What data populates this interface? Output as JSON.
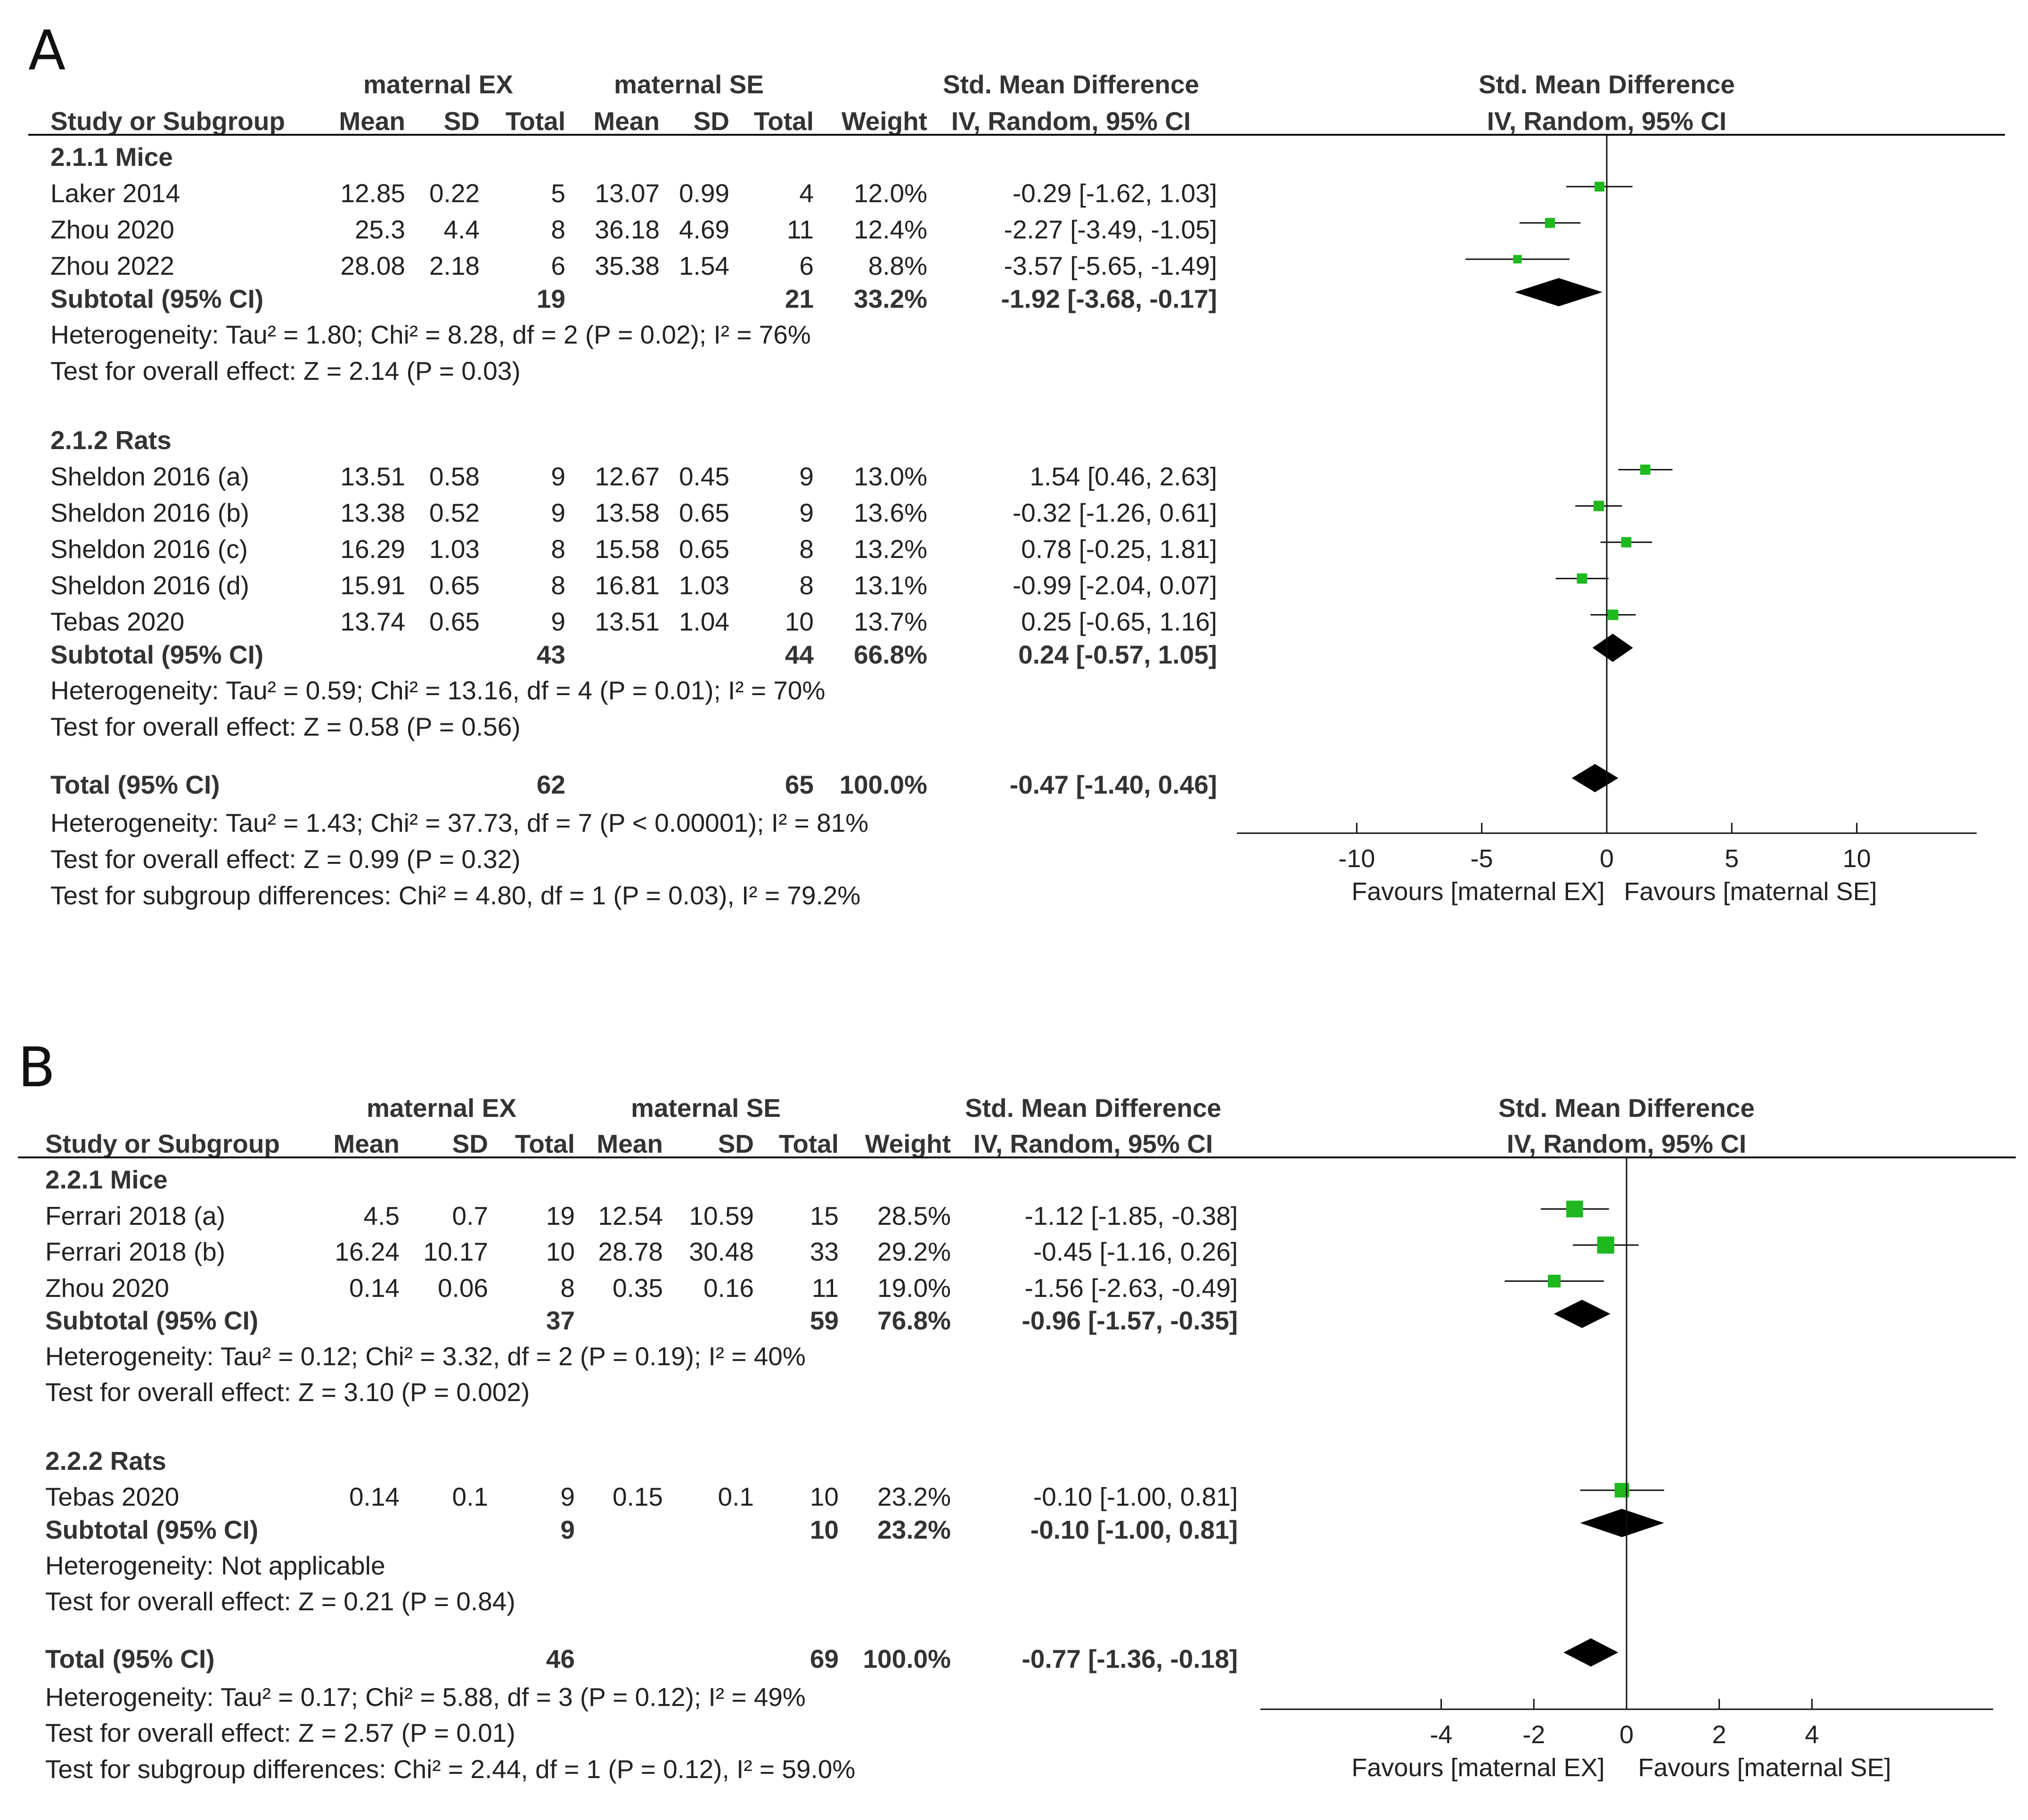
{
  "chart_data": [
    {
      "panel": "A",
      "type": "forest",
      "group_labels": {
        "exp": "maternal EX",
        "ctl": "maternal SE",
        "effect": "Std. Mean Difference",
        "plot": "Std. Mean Difference"
      },
      "col_headers": {
        "study": "Study or Subgroup",
        "mean1": "Mean",
        "sd1": "SD",
        "total1": "Total",
        "mean2": "Mean",
        "sd2": "SD",
        "total2": "Total",
        "weight": "Weight",
        "ci": "IV, Random, 95% CI",
        "plot_ci": "IV, Random, 95% CI"
      },
      "subgroups": [
        {
          "title": "2.1.1 Mice",
          "studies": [
            {
              "name": "Laker 2014",
              "mean1": "12.85",
              "sd1": "0.22",
              "n1": "5",
              "mean2": "13.07",
              "sd2": "0.99",
              "n2": "4",
              "weight": "12.0%",
              "ci_text": "-0.29 [-1.62, 1.03]",
              "est": -0.29,
              "lo": -1.62,
              "hi": 1.03,
              "w": 12.0
            },
            {
              "name": "Zhou 2020",
              "mean1": "25.3",
              "sd1": "4.4",
              "n1": "8",
              "mean2": "36.18",
              "sd2": "4.69",
              "n2": "11",
              "weight": "12.4%",
              "ci_text": "-2.27 [-3.49, -1.05]",
              "est": -2.27,
              "lo": -3.49,
              "hi": -1.05,
              "w": 12.4
            },
            {
              "name": "Zhou 2022",
              "mean1": "28.08",
              "sd1": "2.18",
              "n1": "6",
              "mean2": "35.38",
              "sd2": "1.54",
              "n2": "6",
              "weight": "8.8%",
              "ci_text": "-3.57 [-5.65, -1.49]",
              "est": -3.57,
              "lo": -5.65,
              "hi": -1.49,
              "w": 8.8
            }
          ],
          "subtotal": {
            "label": "Subtotal (95% CI)",
            "n1": "19",
            "n2": "21",
            "weight": "33.2%",
            "ci_text": "-1.92 [-3.68, -0.17]",
            "est": -1.92,
            "lo": -3.68,
            "hi": -0.17
          },
          "heterogeneity": "Heterogeneity: Tau² = 1.80; Chi² = 8.28, df = 2 (P = 0.02); I² = 76%",
          "overall": "Test for overall effect: Z = 2.14 (P = 0.03)"
        },
        {
          "title": "2.1.2 Rats",
          "studies": [
            {
              "name": "Sheldon 2016 (a)",
              "mean1": "13.51",
              "sd1": "0.58",
              "n1": "9",
              "mean2": "12.67",
              "sd2": "0.45",
              "n2": "9",
              "weight": "13.0%",
              "ci_text": "1.54 [0.46, 2.63]",
              "est": 1.54,
              "lo": 0.46,
              "hi": 2.63,
              "w": 13.0
            },
            {
              "name": "Sheldon 2016 (b)",
              "mean1": "13.38",
              "sd1": "0.52",
              "n1": "9",
              "mean2": "13.58",
              "sd2": "0.65",
              "n2": "9",
              "weight": "13.6%",
              "ci_text": "-0.32 [-1.26, 0.61]",
              "est": -0.32,
              "lo": -1.26,
              "hi": 0.61,
              "w": 13.6
            },
            {
              "name": "Sheldon 2016 (c)",
              "mean1": "16.29",
              "sd1": "1.03",
              "n1": "8",
              "mean2": "15.58",
              "sd2": "0.65",
              "n2": "8",
              "weight": "13.2%",
              "ci_text": "0.78 [-0.25, 1.81]",
              "est": 0.78,
              "lo": -0.25,
              "hi": 1.81,
              "w": 13.2
            },
            {
              "name": "Sheldon 2016 (d)",
              "mean1": "15.91",
              "sd1": "0.65",
              "n1": "8",
              "mean2": "16.81",
              "sd2": "1.03",
              "n2": "8",
              "weight": "13.1%",
              "ci_text": "-0.99 [-2.04, 0.07]",
              "est": -0.99,
              "lo": -2.04,
              "hi": 0.07,
              "w": 13.1
            },
            {
              "name": "Tebas 2020",
              "mean1": "13.74",
              "sd1": "0.65",
              "n1": "9",
              "mean2": "13.51",
              "sd2": "1.04",
              "n2": "10",
              "weight": "13.7%",
              "ci_text": "0.25 [-0.65, 1.16]",
              "est": 0.25,
              "lo": -0.65,
              "hi": 1.16,
              "w": 13.7
            }
          ],
          "subtotal": {
            "label": "Subtotal (95% CI)",
            "n1": "43",
            "n2": "44",
            "weight": "66.8%",
            "ci_text": "0.24 [-0.57, 1.05]",
            "est": 0.24,
            "lo": -0.57,
            "hi": 1.05
          },
          "heterogeneity": "Heterogeneity: Tau² = 0.59; Chi² = 13.16, df = 4 (P = 0.01); I² = 70%",
          "overall": "Test for overall effect: Z = 0.58 (P = 0.56)"
        }
      ],
      "total": {
        "label": "Total (95% CI)",
        "n1": "62",
        "n2": "65",
        "weight": "100.0%",
        "ci_text": "-0.47 [-1.40, 0.46]",
        "est": -0.47,
        "lo": -1.4,
        "hi": 0.46
      },
      "total_heterogeneity": "Heterogeneity: Tau² = 1.43; Chi² = 37.73, df = 7 (P < 0.00001); I² = 81%",
      "total_overall": "Test for overall effect: Z = 0.99 (P = 0.32)",
      "subgroup_diff": "Test for subgroup differences: Chi² = 4.80, df = 1 (P = 0.03), I² = 79.2%",
      "axis": {
        "min": -14.7,
        "max": 14.1,
        "ticks": [
          -10,
          -5,
          0,
          5,
          10
        ],
        "tick_labels": [
          "-10",
          "-5",
          "0",
          "5",
          "10"
        ]
      },
      "favours_left": "Favours [maternal EX]",
      "favours_right": "Favours [maternal SE]"
    },
    {
      "panel": "B",
      "type": "forest",
      "group_labels": {
        "exp": "maternal EX",
        "ctl": "maternal SE",
        "effect": "Std. Mean Difference",
        "plot": "Std. Mean Difference"
      },
      "col_headers": {
        "study": "Study or Subgroup",
        "mean1": "Mean",
        "sd1": "SD",
        "total1": "Total",
        "mean2": "Mean",
        "sd2": "SD",
        "total2": "Total",
        "weight": "Weight",
        "ci": "IV, Random, 95% CI",
        "plot_ci": "IV, Random, 95% CI"
      },
      "subgroups": [
        {
          "title": "2.2.1 Mice",
          "studies": [
            {
              "name": "Ferrari 2018 (a)",
              "mean1": "4.5",
              "sd1": "0.7",
              "n1": "19",
              "mean2": "12.54",
              "sd2": "10.59",
              "n2": "15",
              "weight": "28.5%",
              "ci_text": "-1.12 [-1.85, -0.38]",
              "est": -1.12,
              "lo": -1.85,
              "hi": -0.38,
              "w": 28.5
            },
            {
              "name": "Ferrari 2018 (b)",
              "mean1": "16.24",
              "sd1": "10.17",
              "n1": "10",
              "mean2": "28.78",
              "sd2": "30.48",
              "n2": "33",
              "weight": "29.2%",
              "ci_text": "-0.45 [-1.16, 0.26]",
              "est": -0.45,
              "lo": -1.16,
              "hi": 0.26,
              "w": 29.2
            },
            {
              "name": "Zhou 2020",
              "mean1": "0.14",
              "sd1": "0.06",
              "n1": "8",
              "mean2": "0.35",
              "sd2": "0.16",
              "n2": "11",
              "weight": "19.0%",
              "ci_text": "-1.56 [-2.63, -0.49]",
              "est": -1.56,
              "lo": -2.63,
              "hi": -0.49,
              "w": 19.0
            }
          ],
          "subtotal": {
            "label": "Subtotal (95% CI)",
            "n1": "37",
            "n2": "59",
            "weight": "76.8%",
            "ci_text": "-0.96 [-1.57, -0.35]",
            "est": -0.96,
            "lo": -1.57,
            "hi": -0.35
          },
          "heterogeneity": "Heterogeneity: Tau² = 0.12; Chi² = 3.32, df = 2 (P = 0.19); I² = 40%",
          "overall": "Test for overall effect: Z = 3.10 (P = 0.002)"
        },
        {
          "title": "2.2.2 Rats",
          "studies": [
            {
              "name": "Tebas 2020",
              "mean1": "0.14",
              "sd1": "0.1",
              "n1": "9",
              "mean2": "0.15",
              "sd2": "0.1",
              "n2": "10",
              "weight": "23.2%",
              "ci_text": "-0.10 [-1.00, 0.81]",
              "est": -0.1,
              "lo": -1.0,
              "hi": 0.81,
              "w": 23.2
            }
          ],
          "subtotal": {
            "label": "Subtotal (95% CI)",
            "n1": "9",
            "n2": "10",
            "weight": "23.2%",
            "ci_text": "-0.10 [-1.00, 0.81]",
            "est": -0.1,
            "lo": -1.0,
            "hi": 0.81
          },
          "heterogeneity": "Heterogeneity: Not applicable",
          "overall": "Test for overall effect: Z = 0.21 (P = 0.84)"
        }
      ],
      "total": {
        "label": "Total (95% CI)",
        "n1": "46",
        "n2": "69",
        "weight": "100.0%",
        "ci_text": "-0.77 [-1.36, -0.18]",
        "est": -0.77,
        "lo": -1.36,
        "hi": -0.18
      },
      "total_heterogeneity": "Heterogeneity: Tau² = 0.17; Chi² = 5.88, df = 3 (P = 0.12); I² = 49%",
      "total_overall": "Test for overall effect: Z = 2.57 (P = 0.01)",
      "subgroup_diff": "Test for subgroup differences: Chi² = 2.44, df = 1 (P = 0.12), I² = 59.0%",
      "axis": {
        "min": -7.9,
        "max": 7.9,
        "ticks": [
          -4,
          -2,
          0,
          2,
          4
        ],
        "tick_labels": [
          "-4",
          "-2",
          "0",
          "2",
          "4"
        ]
      },
      "favours_left": "Favours [maternal EX]",
      "favours_right": "Favours [maternal SE]"
    }
  ],
  "colors": {
    "marker": "#1fb81f",
    "line": "#111111",
    "diamond": "#000000"
  }
}
